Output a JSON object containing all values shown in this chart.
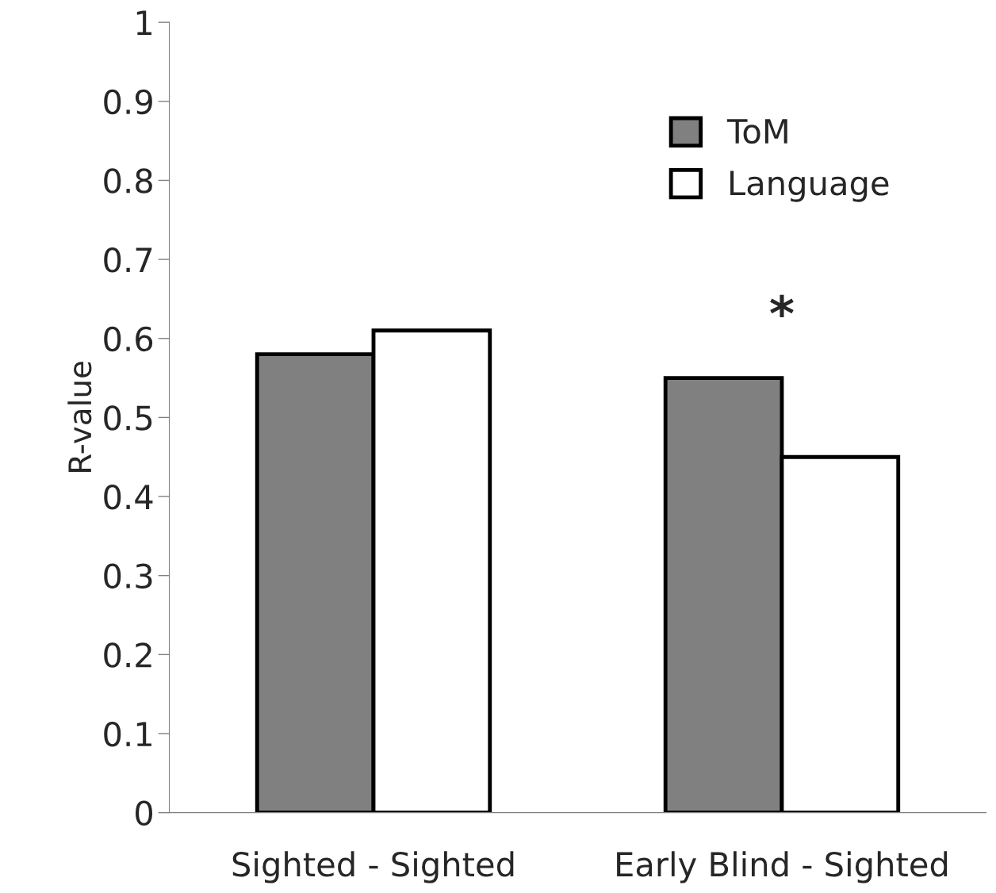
{
  "chart_data": {
    "type": "bar",
    "ylabel": "R-value",
    "categories": [
      "Sighted - Sighted",
      "Early Blind - Sighted"
    ],
    "series": [
      {
        "name": "ToM",
        "color": "#808080",
        "values": [
          0.58,
          0.55
        ]
      },
      {
        "name": "Language",
        "color": "#ffffff",
        "values": [
          0.61,
          0.45
        ]
      }
    ],
    "ylim": [
      0,
      1
    ],
    "yticks": [
      0,
      0.1,
      0.2,
      0.3,
      0.4,
      0.5,
      0.6,
      0.7,
      0.8,
      0.9,
      1
    ],
    "grid": false,
    "legend": "top right",
    "annotations": [
      "*"
    ]
  }
}
